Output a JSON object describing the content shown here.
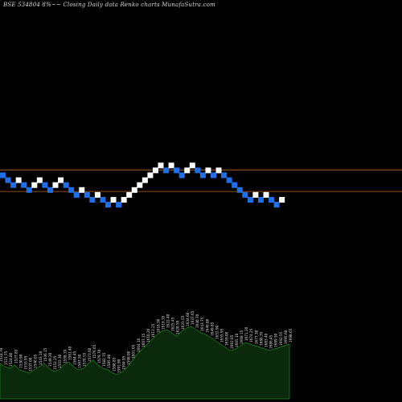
{
  "header": {
    "title": "BSE 534804  8%~~  Closing Daily data  Renko  charts MunafaSutra.com"
  },
  "chart_data": {
    "type": "renko",
    "title": "BSE 534804  8%~~  Closing Daily data  Renko  charts MunafaSutra.com",
    "bricks": [
      {
        "color": "blue",
        "level": 0
      },
      {
        "color": "blue",
        "level": -1
      },
      {
        "color": "blue",
        "level": -2
      },
      {
        "color": "white",
        "level": -1
      },
      {
        "color": "blue",
        "level": -2
      },
      {
        "color": "blue",
        "level": -3
      },
      {
        "color": "white",
        "level": -2
      },
      {
        "color": "white",
        "level": -1
      },
      {
        "color": "blue",
        "level": -2
      },
      {
        "color": "blue",
        "level": -3
      },
      {
        "color": "white",
        "level": -2
      },
      {
        "color": "white",
        "level": -1
      },
      {
        "color": "blue",
        "level": -2
      },
      {
        "color": "blue",
        "level": -3
      },
      {
        "color": "blue",
        "level": -4
      },
      {
        "color": "white",
        "level": -3
      },
      {
        "color": "blue",
        "level": -4
      },
      {
        "color": "blue",
        "level": -5
      },
      {
        "color": "white",
        "level": -4
      },
      {
        "color": "blue",
        "level": -5
      },
      {
        "color": "blue",
        "level": -6
      },
      {
        "color": "white",
        "level": -5
      },
      {
        "color": "blue",
        "level": -6
      },
      {
        "color": "white",
        "level": -5
      },
      {
        "color": "white",
        "level": -4
      },
      {
        "color": "white",
        "level": -3
      },
      {
        "color": "white",
        "level": -2
      },
      {
        "color": "white",
        "level": -1
      },
      {
        "color": "white",
        "level": 0
      },
      {
        "color": "white",
        "level": 1
      },
      {
        "color": "white",
        "level": 2
      },
      {
        "color": "blue",
        "level": 1
      },
      {
        "color": "white",
        "level": 2
      },
      {
        "color": "blue",
        "level": 1
      },
      {
        "color": "blue",
        "level": 0
      },
      {
        "color": "white",
        "level": 1
      },
      {
        "color": "white",
        "level": 2
      },
      {
        "color": "blue",
        "level": 1
      },
      {
        "color": "blue",
        "level": 0
      },
      {
        "color": "white",
        "level": 1
      },
      {
        "color": "blue",
        "level": 0
      },
      {
        "color": "white",
        "level": 1
      },
      {
        "color": "blue",
        "level": 0
      },
      {
        "color": "blue",
        "level": -1
      },
      {
        "color": "blue",
        "level": -2
      },
      {
        "color": "blue",
        "level": -3
      },
      {
        "color": "blue",
        "level": -4
      },
      {
        "color": "blue",
        "level": -5
      },
      {
        "color": "white",
        "level": -4
      },
      {
        "color": "blue",
        "level": -5
      },
      {
        "color": "white",
        "level": -4
      },
      {
        "color": "blue",
        "level": -5
      },
      {
        "color": "blue",
        "level": -6
      },
      {
        "color": "white",
        "level": -5
      }
    ],
    "reference_lines": [
      {
        "level": 1.1,
        "color": "#b5651d"
      },
      {
        "level": -3.3,
        "color": "#b5651d"
      }
    ],
    "volume_profile": [
      22,
      20,
      19,
      21,
      18,
      17,
      16,
      18,
      20,
      22,
      19,
      17,
      18,
      21,
      23,
      20,
      18,
      19,
      22,
      24,
      21,
      19,
      18,
      16,
      15,
      17,
      20,
      24,
      28,
      31,
      34,
      37,
      40,
      42,
      43,
      41,
      39,
      42,
      44,
      45,
      43,
      41,
      40,
      38,
      36,
      34,
      32,
      30,
      31,
      33,
      35,
      34,
      33,
      32,
      31,
      30,
      31,
      32,
      33,
      34
    ],
    "volume_labels": [
      "1518.70",
      "1521.75",
      "1524.80",
      "1527.85",
      "1530.90",
      "1533.95",
      "1537.00",
      "1540.05",
      "1543.10",
      "1546.15",
      "1549.20",
      "1552.25",
      "1555.30",
      "1558.35",
      "1561.40",
      "1564.45",
      "1567.50",
      "1570.55",
      "1573.60",
      "1576.65",
      "1579.70",
      "1582.75",
      "1585.80",
      "1588.85",
      "1591.90",
      "1594.95",
      "1598.00",
      "1601.05",
      "1604.10",
      "1607.15",
      "1610.20",
      "1613.25",
      "1616.30",
      "1619.35",
      "1622.40",
      "1625.45",
      "1628.50",
      "1631.55",
      "1634.60",
      "1637.65",
      "1640.70",
      "1643.75",
      "1646.80",
      "1649.85",
      "1652.90",
      "1655.95",
      "1659.00",
      "1662.05",
      "1665.10",
      "1668.15",
      "1671.20",
      "1674.25",
      "1677.30",
      "1680.35",
      "1683.40",
      "1686.45",
      "1689.50",
      "1692.55",
      "1695.60",
      "1698.65"
    ],
    "colors": {
      "up": "#ffffff",
      "down": "#1f6fe8",
      "background": "#000000",
      "profile_fill": "#0b2a0b",
      "profile_line": "#1e8a1e",
      "label": "#e0e0e0"
    }
  }
}
